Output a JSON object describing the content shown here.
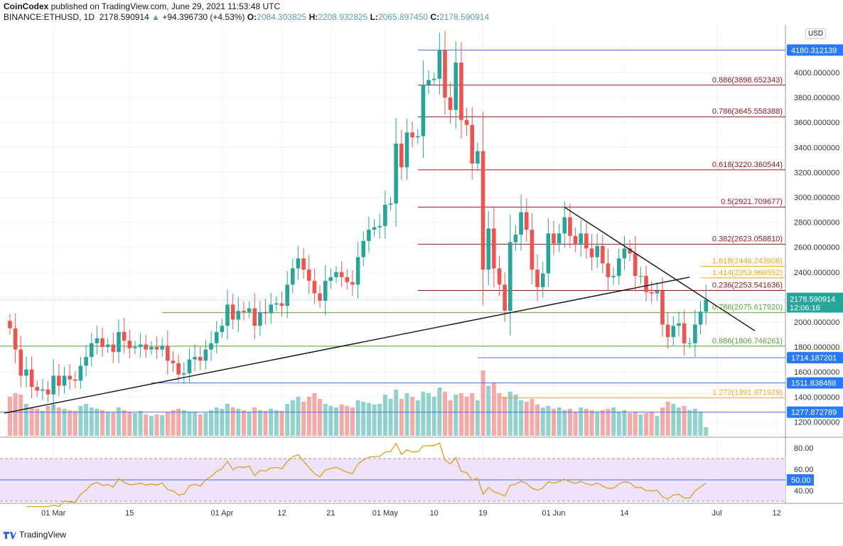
{
  "header": {
    "publisher": "CoinCodex",
    "published": "published on TradingView.com, June 29, 2021 11:53:48 UTC",
    "symbol": "BINANCE:ETHUSD, 1D",
    "last": "2178.590914",
    "change": "+94.396730 (+4.53%)",
    "o": "2084.303825",
    "h": "2208.932825",
    "l": "2065.897450",
    "c": "2178.590914"
  },
  "currency": "USD",
  "footer": "TradingView",
  "colors": {
    "up": "#26a69a",
    "down": "#ef5350",
    "fib_red": "#8b1a1a",
    "fib_orange": "#f0a81c",
    "fib_green": "#5a9e3a",
    "hline": "#4a6fd8",
    "rsi": "#d8a21c",
    "rsi_band": "#efe3fb"
  },
  "chart_data": {
    "type": "candlestick",
    "title": "BINANCE:ETHUSD, 1D",
    "start_date": "2021-02-21",
    "ylim": [
      1050,
      4350
    ],
    "yticks": [
      1200,
      1400,
      1600,
      1800,
      2000,
      2200,
      2400,
      2600,
      2800,
      3000,
      3200,
      3400,
      3600,
      3800,
      4000
    ],
    "xticks": [
      {
        "day": 8,
        "label": "01 Mar"
      },
      {
        "day": 22,
        "label": "15"
      },
      {
        "day": 39,
        "label": "01 Apr"
      },
      {
        "day": 50,
        "label": "12"
      },
      {
        "day": 59,
        "label": "21"
      },
      {
        "day": 69,
        "label": "01 May"
      },
      {
        "day": 78,
        "label": "10"
      },
      {
        "day": 87,
        "label": "19"
      },
      {
        "day": 100,
        "label": "01 Jun"
      },
      {
        "day": 113,
        "label": "14"
      },
      {
        "day": 130,
        "label": "Jul"
      },
      {
        "day": 141,
        "label": "12"
      }
    ],
    "close": [
      1950,
      1780,
      1570,
      1620,
      1480,
      1450,
      1460,
      1420,
      1570,
      1490,
      1570,
      1540,
      1530,
      1650,
      1720,
      1830,
      1870,
      1800,
      1820,
      1760,
      1920,
      1850,
      1790,
      1800,
      1820,
      1780,
      1800,
      1780,
      1810,
      1690,
      1670,
      1580,
      1590,
      1700,
      1720,
      1690,
      1780,
      1830,
      1920,
      1970,
      2140,
      2020,
      2090,
      2080,
      2110,
      1970,
      2080,
      2070,
      2140,
      2150,
      2130,
      2300,
      2430,
      2510,
      2420,
      2330,
      2230,
      2170,
      2330,
      2360,
      2400,
      2360,
      2320,
      2300,
      2520,
      2650,
      2740,
      2760,
      2770,
      2940,
      2950,
      3430,
      3240,
      3520,
      3480,
      3490,
      3900,
      3940,
      3950,
      4180,
      3800,
      3700,
      4080,
      3620,
      3580,
      3270,
      3370,
      2420,
      2750,
      2430,
      2300,
      2090,
      2640,
      2700,
      2880,
      2740,
      2420,
      2280,
      2390,
      2710,
      2630,
      2710,
      2840,
      2690,
      2620,
      2710,
      2590,
      2520,
      2610,
      2470,
      2360,
      2370,
      2510,
      2590,
      2550,
      2370,
      2370,
      2240,
      2230,
      2250,
      1980,
      1880,
      1970,
      1990,
      1830,
      1830,
      1980,
      2084,
      2178.590914
    ],
    "volume": [
      55,
      60,
      58,
      45,
      40,
      38,
      35,
      42,
      44,
      40,
      38,
      36,
      35,
      42,
      45,
      40,
      38,
      36,
      34,
      33,
      40,
      36,
      34,
      32,
      35,
      30,
      28,
      30,
      29,
      34,
      36,
      38,
      36,
      34,
      33,
      30,
      32,
      36,
      40,
      38,
      45,
      40,
      38,
      36,
      34,
      40,
      36,
      35,
      38,
      36,
      35,
      45,
      50,
      55,
      48,
      55,
      60,
      52,
      45,
      42,
      40,
      44,
      42,
      40,
      50,
      48,
      46,
      44,
      45,
      58,
      52,
      65,
      52,
      60,
      55,
      50,
      62,
      60,
      55,
      68,
      62,
      50,
      58,
      60,
      55,
      60,
      50,
      92,
      70,
      75,
      60,
      55,
      62,
      58,
      50,
      48,
      52,
      44,
      40,
      42,
      38,
      40,
      36,
      38,
      34,
      40,
      38,
      36,
      34,
      36,
      38,
      40,
      34,
      36,
      32,
      34,
      30,
      32,
      34,
      28,
      40,
      48,
      45,
      40,
      42,
      36,
      38,
      34,
      12
    ],
    "rsi_period": 14,
    "rsi_ticks": [
      {
        "v": 80,
        "label": "80.00"
      },
      {
        "v": 60,
        "label": "60.00"
      },
      {
        "v": 40,
        "label": "40.00"
      }
    ],
    "rsi_mid_label": "50.00",
    "levels": [
      {
        "price": 4180.312139,
        "label": "4180.312139",
        "kind": "hline",
        "from_day": 75
      },
      {
        "price": 3898.652343,
        "label": "0.886(3898.652343)",
        "kind": "fib_red",
        "from_day": 75
      },
      {
        "price": 3645.558388,
        "label": "0.786(3645.558388)",
        "kind": "fib_red",
        "from_day": 75
      },
      {
        "price": 3220.360544,
        "label": "0.618(3220.360544)",
        "kind": "fib_red",
        "from_day": 75
      },
      {
        "price": 2921.709677,
        "label": "0.5(2921.709677)",
        "kind": "fib_red",
        "from_day": 75
      },
      {
        "price": 2623.05881,
        "label": "0.382(2623.058810)",
        "kind": "fib_red",
        "from_day": 75
      },
      {
        "price": 2446.243906,
        "label": "1.618(2446.243906)",
        "kind": "fib_orange",
        "from_day": 127
      },
      {
        "price": 2353.966552,
        "label": "1.414(2353.966552)",
        "kind": "fib_orange",
        "from_day": 127
      },
      {
        "price": 2253.541636,
        "label": "0.236(2253.541636)",
        "kind": "fib_red",
        "from_day": 75
      },
      {
        "price": 2075.61792,
        "label": "0.786(2075.617920)",
        "kind": "fib_green",
        "from_day": 28
      },
      {
        "price": 1806.746261,
        "label": "0.886(1806.746261)",
        "kind": "fib_green",
        "from_day": -2
      },
      {
        "price": 1714.187201,
        "label": "1714.187201",
        "kind": "hline",
        "from_day": 86
      },
      {
        "price": 1511.838488,
        "label": "1511.838488",
        "kind": "hline",
        "from_day": 26
      },
      {
        "price": 1391.971929,
        "label": "1.272(1391.971929)",
        "kind": "fib_orange",
        "from_day": 90
      },
      {
        "price": 1277.872789,
        "label": "1277.872789",
        "kind": "hline",
        "from_day": -2
      }
    ],
    "trendlines": [
      {
        "from": [
          -1,
          1270
        ],
        "to": [
          125,
          2360
        ]
      },
      {
        "from": [
          102,
          2920
        ],
        "to": [
          137,
          1930
        ]
      }
    ],
    "last_price_label": "2178.590914",
    "countdown": "12:06:16"
  }
}
